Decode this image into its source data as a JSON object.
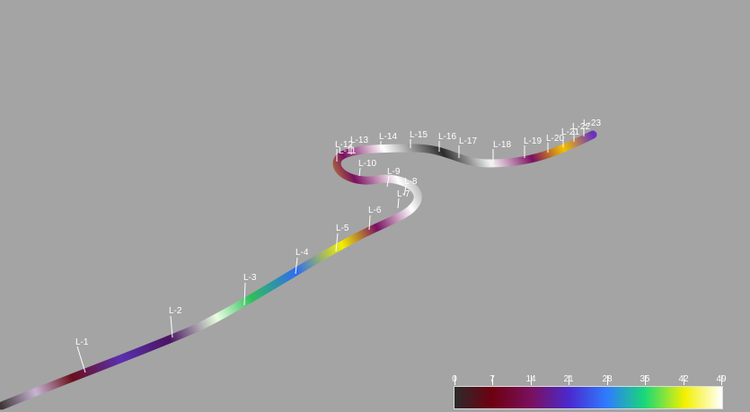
{
  "well_labels": [
    "L-1",
    "L-2",
    "L-3",
    "L-4",
    "L-5",
    "L-6",
    "L-7",
    "L-8",
    "L-9",
    "L-10",
    "L-11",
    "L-12",
    "L-13",
    "L-14",
    "L-15",
    "L-16",
    "L-17",
    "L-18",
    "L-19",
    "L-20",
    "L-21",
    "L-22",
    "L-23"
  ],
  "colorbar": {
    "ticks": [
      "0",
      "7",
      "14",
      "21",
      "28",
      "35",
      "42",
      "49"
    ],
    "min": 0,
    "max": 49,
    "colormap": [
      "#2b2b2b",
      "#6e0010",
      "#7a1060",
      "#4a2ad0",
      "#2f7cff",
      "#18d878",
      "#f3f000",
      "#ffffff"
    ]
  },
  "colors": {
    "background": "#a4a4a4",
    "label": "#ffffff"
  }
}
